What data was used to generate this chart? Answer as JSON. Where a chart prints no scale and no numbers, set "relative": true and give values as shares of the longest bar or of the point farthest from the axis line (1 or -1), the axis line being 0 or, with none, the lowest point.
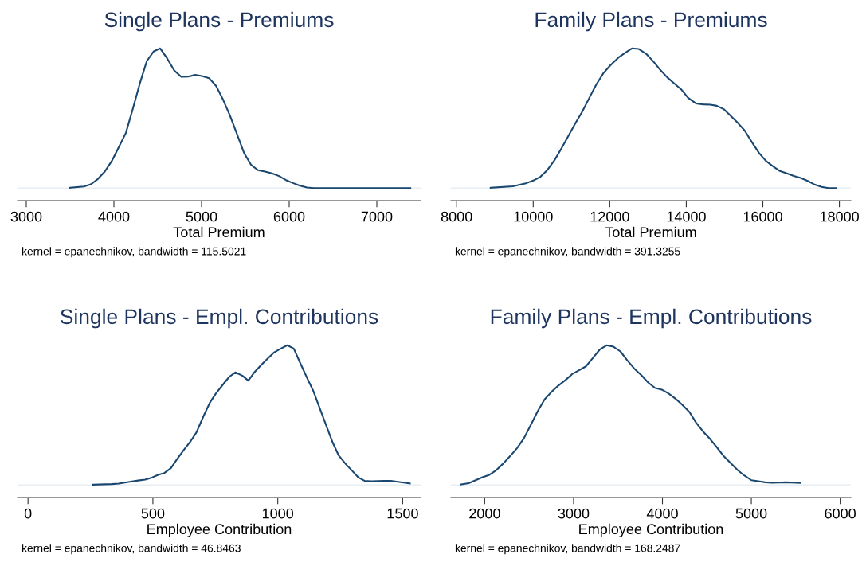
{
  "chart_data": [
    {
      "type": "line",
      "title": "Single Plans - Premiums",
      "xlabel": "Total Premium",
      "annotations": [
        "kernel = epanechnikov, bandwidth = 115.5021"
      ],
      "relative": true,
      "xlim": [
        2900,
        7500
      ],
      "xticks": [
        3000,
        4000,
        5000,
        6000,
        7000
      ],
      "grid": false,
      "legend": false,
      "ref_lines": [
        {
          "axis": "y",
          "value": 0,
          "color": "#e8eef2"
        }
      ],
      "series": [
        {
          "color": "#1a476f",
          "x": [
            3498,
            3657,
            3737,
            3817,
            3896,
            3976,
            4056,
            4136,
            4215,
            4295,
            4375,
            4455,
            4528,
            4608,
            4688,
            4768,
            4847,
            4927,
            5006,
            5086,
            5166,
            5246,
            5325,
            5405,
            5485,
            5565,
            5644,
            5724,
            5804,
            5884,
            5963,
            6043,
            6123,
            6203,
            6282,
            6496,
            6815,
            7383
          ],
          "values": [
            0.002,
            0.011,
            0.027,
            0.065,
            0.118,
            0.194,
            0.293,
            0.394,
            0.566,
            0.747,
            0.909,
            0.979,
            1,
            0.928,
            0.842,
            0.796,
            0.798,
            0.81,
            0.802,
            0.787,
            0.731,
            0.632,
            0.518,
            0.385,
            0.251,
            0.166,
            0.128,
            0.118,
            0.105,
            0.086,
            0.057,
            0.036,
            0.017,
            0.004,
            0,
            0,
            0,
            0
          ]
        }
      ]
    },
    {
      "type": "line",
      "title": "Family Plans - Premiums",
      "xlabel": "Total Premium",
      "annotations": [
        "kernel = epanechnikov, bandwidth = 391.3255"
      ],
      "relative": true,
      "xlim": [
        7850,
        18300
      ],
      "xticks": [
        8000,
        10000,
        12000,
        14000,
        16000,
        18000
      ],
      "grid": false,
      "legend": false,
      "ref_lines": [
        {
          "axis": "y",
          "value": 0,
          "color": "#e8eef2"
        }
      ],
      "series": [
        {
          "color": "#1a476f",
          "x": [
            8887,
            9468,
            9831,
            10013,
            10195,
            10376,
            10558,
            10740,
            10922,
            11103,
            11285,
            11467,
            11648,
            11830,
            12012,
            12230,
            12411,
            12578,
            12753,
            12956,
            13138,
            13320,
            13501,
            13683,
            13865,
            14047,
            14250,
            14446,
            14628,
            14795,
            14977,
            15159,
            15340,
            15522,
            15718,
            15900,
            16081,
            16263,
            16445,
            16627,
            16808,
            16990,
            17172,
            17353,
            17535,
            17717,
            17921
          ],
          "values": [
            0.002,
            0.013,
            0.036,
            0.055,
            0.082,
            0.131,
            0.2,
            0.285,
            0.375,
            0.464,
            0.549,
            0.646,
            0.741,
            0.821,
            0.878,
            0.935,
            0.97,
            1,
            0.996,
            0.96,
            0.907,
            0.846,
            0.793,
            0.749,
            0.707,
            0.646,
            0.606,
            0.599,
            0.597,
            0.589,
            0.565,
            0.517,
            0.468,
            0.413,
            0.327,
            0.251,
            0.194,
            0.156,
            0.122,
            0.105,
            0.087,
            0.072,
            0.051,
            0.025,
            0.008,
            0,
            0
          ]
        }
      ]
    },
    {
      "type": "line",
      "title": "Single Plans - Empl. Contributions",
      "xlabel": "Employee Contribution",
      "annotations": [
        "kernel = epanechnikov, bandwidth = 46.8463"
      ],
      "relative": true,
      "xlim": [
        -42,
        1572
      ],
      "xticks": [
        0,
        500,
        1000,
        1500
      ],
      "grid": false,
      "legend": false,
      "ref_lines": [
        {
          "axis": "y",
          "value": 0,
          "color": "#e8eef2"
        }
      ],
      "series": [
        {
          "color": "#1a476f",
          "x": [
            260,
            335,
            363,
            407,
            441,
            469,
            496,
            521,
            546,
            572,
            596,
            624,
            652,
            674,
            702,
            728,
            752,
            780,
            806,
            830,
            858,
            882,
            906,
            936,
            961,
            986,
            1011,
            1038,
            1064,
            1092,
            1119,
            1142,
            1169,
            1195,
            1220,
            1244,
            1272,
            1297,
            1322,
            1347,
            1375,
            1425,
            1453,
            1481,
            1529
          ],
          "values": [
            0.002,
            0.006,
            0.01,
            0.023,
            0.032,
            0.038,
            0.053,
            0.072,
            0.086,
            0.12,
            0.183,
            0.251,
            0.316,
            0.375,
            0.49,
            0.589,
            0.655,
            0.718,
            0.775,
            0.806,
            0.783,
            0.747,
            0.806,
            0.863,
            0.907,
            0.95,
            0.975,
            1,
            0.977,
            0.865,
            0.76,
            0.674,
            0.545,
            0.421,
            0.303,
            0.211,
            0.15,
            0.103,
            0.055,
            0.03,
            0.027,
            0.03,
            0.029,
            0.023,
            0.011
          ]
        }
      ]
    },
    {
      "type": "line",
      "title": "Family Plans - Empl. Contributions",
      "xlabel": "Employee Contribution",
      "annotations": [
        "kernel = epanechnikov, bandwidth = 168.2487"
      ],
      "relative": true,
      "xlim": [
        1620,
        6120
      ],
      "xticks": [
        2000,
        3000,
        4000,
        5000,
        6000
      ],
      "grid": false,
      "legend": false,
      "ref_lines": [
        {
          "axis": "y",
          "value": 0,
          "color": "#e8eef2"
        }
      ],
      "series": [
        {
          "color": "#1a476f",
          "x": [
            1736,
            1820,
            1898,
            1975,
            2047,
            2121,
            2208,
            2285,
            2363,
            2441,
            2518,
            2596,
            2674,
            2751,
            2829,
            2907,
            2984,
            3062,
            3139,
            3216,
            3294,
            3372,
            3449,
            3527,
            3604,
            3682,
            3760,
            3837,
            3915,
            3992,
            4070,
            4147,
            4225,
            4303,
            4380,
            4458,
            4535,
            4613,
            4690,
            4768,
            4846,
            4923,
            5001,
            5078,
            5156,
            5234,
            5389,
            5550
          ],
          "values": [
            0.004,
            0.013,
            0.034,
            0.055,
            0.071,
            0.101,
            0.153,
            0.206,
            0.263,
            0.334,
            0.429,
            0.527,
            0.613,
            0.666,
            0.712,
            0.75,
            0.794,
            0.821,
            0.849,
            0.908,
            0.969,
            1,
            0.99,
            0.956,
            0.893,
            0.834,
            0.788,
            0.735,
            0.695,
            0.683,
            0.655,
            0.618,
            0.573,
            0.523,
            0.445,
            0.382,
            0.33,
            0.269,
            0.206,
            0.156,
            0.107,
            0.067,
            0.034,
            0.027,
            0.019,
            0.015,
            0.019,
            0.015
          ]
        }
      ]
    }
  ]
}
